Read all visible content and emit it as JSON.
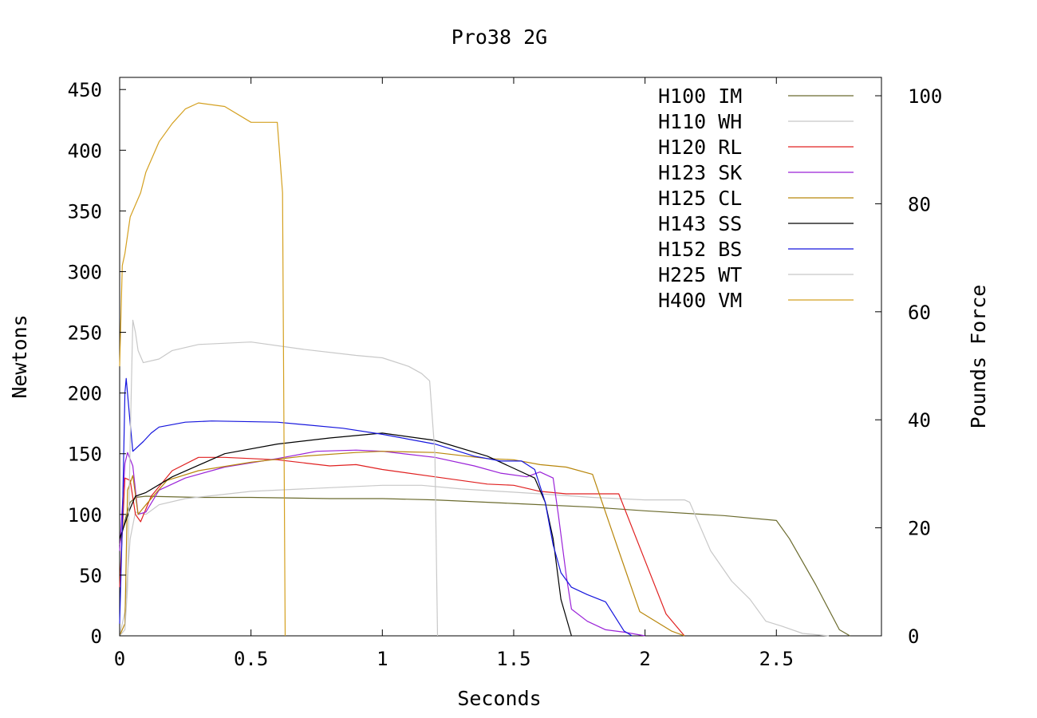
{
  "chart_data": {
    "type": "line",
    "title": "Pro38 2G",
    "xlabel": "Seconds",
    "ylabel": "Newtons",
    "y2label": "Pounds Force",
    "xlim": [
      0,
      2.9
    ],
    "ylim": [
      0,
      460
    ],
    "y2lim": [
      0,
      103.4
    ],
    "x_ticks": [
      0,
      0.5,
      1,
      1.5,
      2,
      2.5
    ],
    "x_tick_labels": [
      "0",
      "0.5",
      "1",
      "1.5",
      "2",
      "2.5"
    ],
    "y_ticks": [
      0,
      50,
      100,
      150,
      200,
      250,
      300,
      350,
      400,
      450
    ],
    "y_tick_labels": [
      "0",
      "50",
      "100",
      "150",
      "200",
      "250",
      "300",
      "350",
      "400",
      "450"
    ],
    "y2_ticks": [
      0,
      20,
      40,
      60,
      80,
      100
    ],
    "y2_tick_labels": [
      "0",
      "20",
      "40",
      "60",
      "80",
      "100"
    ],
    "grid": false,
    "legend_position": "top-right",
    "series": [
      {
        "name": "H100 IM",
        "color": "#6b6b2e",
        "points": [
          [
            0,
            75
          ],
          [
            0.02,
            95
          ],
          [
            0.04,
            110
          ],
          [
            0.06,
            114
          ],
          [
            0.1,
            115
          ],
          [
            0.3,
            114
          ],
          [
            0.5,
            114
          ],
          [
            0.8,
            113
          ],
          [
            1.0,
            113
          ],
          [
            1.2,
            112
          ],
          [
            1.5,
            109
          ],
          [
            1.8,
            106
          ],
          [
            2.0,
            103
          ],
          [
            2.3,
            99
          ],
          [
            2.5,
            95
          ],
          [
            2.55,
            80
          ],
          [
            2.65,
            42
          ],
          [
            2.74,
            5
          ],
          [
            2.78,
            0
          ]
        ]
      },
      {
        "name": "H110 WH",
        "color": "#c8c8c8",
        "points": [
          [
            0,
            0
          ],
          [
            0.02,
            20
          ],
          [
            0.04,
            80
          ],
          [
            0.06,
            102
          ],
          [
            0.1,
            100
          ],
          [
            0.15,
            108
          ],
          [
            0.25,
            113
          ],
          [
            0.5,
            119
          ],
          [
            0.8,
            122
          ],
          [
            1.0,
            124
          ],
          [
            1.15,
            124
          ],
          [
            1.3,
            121
          ],
          [
            1.6,
            117
          ],
          [
            1.8,
            114
          ],
          [
            2.0,
            112
          ],
          [
            2.15,
            112
          ],
          [
            2.17,
            110
          ],
          [
            2.25,
            70
          ],
          [
            2.33,
            45
          ],
          [
            2.4,
            30
          ],
          [
            2.46,
            12
          ],
          [
            2.52,
            8
          ],
          [
            2.6,
            2
          ],
          [
            2.7,
            0
          ]
        ]
      },
      {
        "name": "H120 RL",
        "color": "#e02020",
        "points": [
          [
            0,
            40
          ],
          [
            0.02,
            130
          ],
          [
            0.04,
            128
          ],
          [
            0.06,
            100
          ],
          [
            0.08,
            94
          ],
          [
            0.12,
            115
          ],
          [
            0.2,
            136
          ],
          [
            0.3,
            147
          ],
          [
            0.4,
            147
          ],
          [
            0.6,
            145
          ],
          [
            0.8,
            140
          ],
          [
            0.9,
            141
          ],
          [
            1.0,
            137
          ],
          [
            1.2,
            131
          ],
          [
            1.4,
            125
          ],
          [
            1.5,
            124
          ],
          [
            1.6,
            119
          ],
          [
            1.7,
            117
          ],
          [
            1.9,
            117
          ],
          [
            2.0,
            62
          ],
          [
            2.08,
            18
          ],
          [
            2.15,
            0
          ]
        ]
      },
      {
        "name": "H123 SK",
        "color": "#9a22d8",
        "points": [
          [
            0,
            70
          ],
          [
            0.02,
            142
          ],
          [
            0.03,
            151
          ],
          [
            0.05,
            140
          ],
          [
            0.07,
            100
          ],
          [
            0.1,
            102
          ],
          [
            0.15,
            120
          ],
          [
            0.25,
            130
          ],
          [
            0.4,
            139
          ],
          [
            0.6,
            146
          ],
          [
            0.75,
            152
          ],
          [
            0.9,
            153
          ],
          [
            1.0,
            152
          ],
          [
            1.2,
            147
          ],
          [
            1.35,
            140
          ],
          [
            1.45,
            134
          ],
          [
            1.55,
            131
          ],
          [
            1.6,
            135
          ],
          [
            1.65,
            130
          ],
          [
            1.67,
            100
          ],
          [
            1.7,
            50
          ],
          [
            1.72,
            22
          ],
          [
            1.78,
            12
          ],
          [
            1.85,
            5
          ],
          [
            1.92,
            3
          ],
          [
            2.0,
            0
          ]
        ]
      },
      {
        "name": "H125 CL",
        "color": "#b8860b",
        "points": [
          [
            0,
            0
          ],
          [
            0.02,
            10
          ],
          [
            0.03,
            120
          ],
          [
            0.05,
            132
          ],
          [
            0.07,
            100
          ],
          [
            0.1,
            108
          ],
          [
            0.18,
            128
          ],
          [
            0.3,
            136
          ],
          [
            0.5,
            143
          ],
          [
            0.7,
            148
          ],
          [
            0.9,
            151
          ],
          [
            1.0,
            152
          ],
          [
            1.2,
            151
          ],
          [
            1.4,
            146
          ],
          [
            1.5,
            145
          ],
          [
            1.6,
            141
          ],
          [
            1.7,
            139
          ],
          [
            1.8,
            133
          ],
          [
            1.9,
            70
          ],
          [
            1.98,
            20
          ],
          [
            2.1,
            4
          ],
          [
            2.15,
            0
          ]
        ]
      },
      {
        "name": "H143 SS",
        "color": "#000000",
        "points": [
          [
            0,
            80
          ],
          [
            0.04,
            105
          ],
          [
            0.06,
            115
          ],
          [
            0.1,
            118
          ],
          [
            0.2,
            131
          ],
          [
            0.4,
            150
          ],
          [
            0.6,
            158
          ],
          [
            0.8,
            163
          ],
          [
            1.0,
            167
          ],
          [
            1.2,
            161
          ],
          [
            1.4,
            148
          ],
          [
            1.5,
            138
          ],
          [
            1.58,
            130
          ],
          [
            1.62,
            110
          ],
          [
            1.65,
            80
          ],
          [
            1.68,
            30
          ],
          [
            1.72,
            0
          ]
        ]
      },
      {
        "name": "H152 BS",
        "color": "#1515dd",
        "points": [
          [
            0,
            10
          ],
          [
            0.01,
            90
          ],
          [
            0.02,
            200
          ],
          [
            0.025,
            212
          ],
          [
            0.04,
            175
          ],
          [
            0.05,
            152
          ],
          [
            0.09,
            160
          ],
          [
            0.12,
            167
          ],
          [
            0.15,
            172
          ],
          [
            0.25,
            176
          ],
          [
            0.35,
            177
          ],
          [
            0.6,
            176
          ],
          [
            0.85,
            171
          ],
          [
            1.0,
            166
          ],
          [
            1.2,
            158
          ],
          [
            1.35,
            148
          ],
          [
            1.45,
            144
          ],
          [
            1.53,
            144
          ],
          [
            1.58,
            137
          ],
          [
            1.62,
            110
          ],
          [
            1.65,
            75
          ],
          [
            1.68,
            52
          ],
          [
            1.72,
            40
          ],
          [
            1.78,
            34
          ],
          [
            1.85,
            28
          ],
          [
            1.92,
            4
          ],
          [
            1.95,
            0
          ]
        ]
      },
      {
        "name": "H225 WT",
        "color": "#c8c8c8",
        "points": [
          [
            0,
            0
          ],
          [
            0.02,
            5
          ],
          [
            0.03,
            40
          ],
          [
            0.04,
            160
          ],
          [
            0.05,
            260
          ],
          [
            0.06,
            250
          ],
          [
            0.07,
            235
          ],
          [
            0.09,
            225
          ],
          [
            0.15,
            228
          ],
          [
            0.2,
            235
          ],
          [
            0.3,
            240
          ],
          [
            0.5,
            242
          ],
          [
            0.7,
            236
          ],
          [
            0.9,
            231
          ],
          [
            1.0,
            229
          ],
          [
            1.1,
            222
          ],
          [
            1.15,
            216
          ],
          [
            1.18,
            210
          ],
          [
            1.2,
            150
          ],
          [
            1.21,
            0
          ]
        ]
      },
      {
        "name": "H400 VM",
        "color": "#d4a020",
        "points": [
          [
            0,
            222
          ],
          [
            0.01,
            305
          ],
          [
            0.02,
            315
          ],
          [
            0.04,
            345
          ],
          [
            0.08,
            365
          ],
          [
            0.1,
            382
          ],
          [
            0.15,
            407
          ],
          [
            0.2,
            422
          ],
          [
            0.25,
            434
          ],
          [
            0.3,
            439
          ],
          [
            0.4,
            436
          ],
          [
            0.5,
            423
          ],
          [
            0.55,
            423
          ],
          [
            0.6,
            423
          ],
          [
            0.62,
            365
          ],
          [
            0.63,
            0
          ]
        ]
      }
    ]
  }
}
